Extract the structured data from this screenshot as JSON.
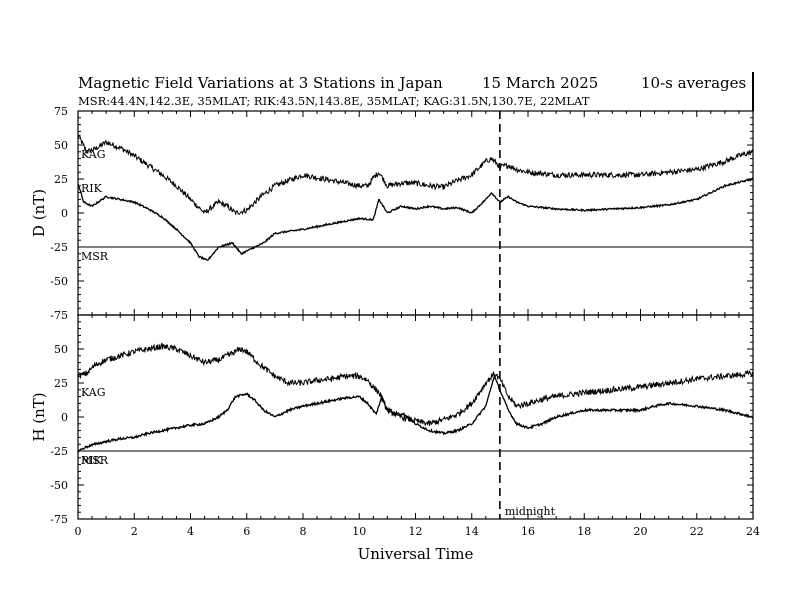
{
  "header": {
    "title": "Magnetic Field Variations at 3 Stations in Japan",
    "date": "15 March   2025",
    "averaging": "10-s averages",
    "stations_line": "MSR:44.4N,142.3E, 35MLAT;  RIK:43.5N,143.8E, 35MLAT;  KAG:31.5N,130.7E, 22MLAT"
  },
  "chart_data": [
    {
      "type": "line",
      "panel": "top",
      "ylabel": "D (nT)",
      "xlabel": "",
      "xlim": [
        0,
        24
      ],
      "ylim": [
        -75,
        75
      ],
      "yticks": [
        -75,
        -50,
        -25,
        0,
        25,
        50,
        75
      ],
      "xticks": [
        0,
        2,
        4,
        6,
        8,
        10,
        12,
        14,
        16,
        18,
        20,
        22,
        24
      ],
      "baseline_offsets": [
        {
          "label": "KAG",
          "offset": 50
        },
        {
          "label": "RIK",
          "offset": 25
        },
        {
          "label": "MSR",
          "offset": -25
        }
      ],
      "series": [
        {
          "name": "KAG",
          "noise": 2.0,
          "x": [
            0,
            0.3,
            0.6,
            1.0,
            1.5,
            2.0,
            2.5,
            3.0,
            3.5,
            4.0,
            4.5,
            5.0,
            5.3,
            5.6,
            6.0,
            6.5,
            7.0,
            7.5,
            8.0,
            8.5,
            9.0,
            9.5,
            10.0,
            10.3,
            10.5,
            10.7,
            11.0,
            11.5,
            12.0,
            12.5,
            13.0,
            13.5,
            14.0,
            14.5,
            14.7,
            15.0,
            15.3,
            15.6,
            16.0,
            16.5,
            17.0,
            18.0,
            19.0,
            20.0,
            21.0,
            22.0,
            23.0,
            23.5,
            24.0
          ],
          "y": [
            58,
            45,
            47,
            52,
            48,
            42,
            35,
            28,
            20,
            10,
            0,
            8,
            5,
            0,
            2,
            12,
            20,
            24,
            28,
            26,
            24,
            22,
            20,
            20,
            26,
            30,
            20,
            22,
            22,
            20,
            19,
            24,
            28,
            38,
            40,
            34,
            35,
            32,
            30,
            29,
            28,
            28,
            28,
            28,
            30,
            32,
            38,
            42,
            45
          ]
        },
        {
          "name": "RIK",
          "noise": 0.6,
          "x": [
            0,
            0.2,
            0.5,
            1.0,
            1.5,
            2.0,
            2.5,
            3.0,
            3.5,
            4.0,
            4.3,
            4.6,
            5.0,
            5.5,
            5.8,
            6.0,
            6.3,
            6.6,
            7.0,
            8.0,
            9.0,
            10.0,
            10.5,
            10.7,
            11.0,
            11.5,
            12.0,
            12.5,
            13.0,
            13.5,
            14.0,
            14.5,
            14.7,
            15.0,
            15.3,
            15.6,
            16.0,
            17.0,
            18.0,
            19.0,
            20.0,
            21.0,
            22.0,
            23.0,
            24.0
          ],
          "y": [
            22,
            8,
            5,
            12,
            10,
            8,
            3,
            -3,
            -12,
            -22,
            -32,
            -35,
            -25,
            -22,
            -30,
            -28,
            -25,
            -22,
            -15,
            -12,
            -8,
            -4,
            -5,
            10,
            0,
            5,
            3,
            5,
            3,
            4,
            0,
            10,
            15,
            8,
            12,
            8,
            5,
            3,
            2,
            3,
            4,
            6,
            10,
            20,
            25
          ]
        },
        {
          "name": "MSR",
          "noise": 0,
          "x": [
            0,
            24
          ],
          "y": [
            -25,
            -25
          ]
        }
      ],
      "annotations": []
    },
    {
      "type": "line",
      "panel": "bottom",
      "ylabel": "H (nT)",
      "xlabel": "Universal Time",
      "xlim": [
        0,
        24
      ],
      "ylim": [
        -75,
        75
      ],
      "yticks": [
        -75,
        -50,
        -25,
        0,
        25,
        50,
        75
      ],
      "xticks": [
        0,
        2,
        4,
        6,
        8,
        10,
        12,
        14,
        16,
        18,
        20,
        22,
        24
      ],
      "baseline_offsets": [
        {
          "label": "KAG",
          "offset": 25
        },
        {
          "label": "RIK",
          "offset": -25
        },
        {
          "label": "MSR",
          "offset": -25
        }
      ],
      "series": [
        {
          "name": "KAG",
          "noise": 2.2,
          "x": [
            0,
            0.3,
            0.6,
            1.0,
            1.5,
            2.0,
            2.5,
            3.0,
            3.5,
            4.0,
            4.5,
            5.0,
            5.5,
            5.8,
            6.0,
            6.5,
            7.0,
            7.5,
            8.0,
            8.5,
            9.0,
            9.5,
            10.0,
            10.3,
            10.5,
            10.7,
            11.0,
            11.5,
            12.0,
            12.5,
            13.0,
            13.5,
            14.0,
            14.5,
            14.8,
            15.0,
            15.3,
            15.6,
            16.0,
            16.5,
            17.0,
            18.0,
            19.0,
            20.0,
            21.0,
            22.0,
            23.0,
            24.0
          ],
          "y": [
            30,
            32,
            38,
            42,
            45,
            48,
            50,
            52,
            50,
            45,
            40,
            42,
            47,
            50,
            48,
            38,
            30,
            25,
            25,
            27,
            28,
            30,
            30,
            27,
            22,
            18,
            5,
            0,
            -3,
            -5,
            -2,
            2,
            10,
            25,
            32,
            28,
            15,
            8,
            10,
            13,
            15,
            18,
            20,
            22,
            25,
            28,
            30,
            32
          ]
        },
        {
          "name": "RIK",
          "noise": 0.8,
          "x": [
            0,
            0.3,
            0.6,
            1.0,
            1.5,
            2.0,
            2.5,
            3.0,
            3.5,
            4.0,
            4.5,
            5.0,
            5.3,
            5.6,
            6.0,
            6.3,
            6.6,
            7.0,
            7.5,
            8.0,
            8.5,
            9.0,
            9.5,
            10.0,
            10.3,
            10.6,
            10.8,
            11.0,
            11.3,
            11.6,
            12.0,
            12.5,
            13.0,
            13.5,
            14.0,
            14.5,
            14.8,
            15.0,
            15.3,
            15.6,
            16.0,
            16.5,
            17.0,
            18.0,
            19.0,
            20.0,
            20.5,
            21.0,
            22.0,
            23.0,
            24.0
          ],
          "y": [
            -25,
            -22,
            -20,
            -18,
            -16,
            -15,
            -12,
            -10,
            -8,
            -6,
            -5,
            0,
            5,
            15,
            17,
            12,
            5,
            0,
            5,
            8,
            10,
            12,
            14,
            15,
            10,
            2,
            15,
            5,
            2,
            2,
            -5,
            -10,
            -12,
            -10,
            -5,
            8,
            30,
            20,
            5,
            -5,
            -8,
            -5,
            0,
            5,
            5,
            5,
            8,
            10,
            8,
            5,
            0
          ]
        },
        {
          "name": "MSR",
          "noise": 0,
          "x": [
            0,
            24
          ],
          "y": [
            -25,
            -25
          ]
        }
      ],
      "annotations": [
        {
          "text": "midnight",
          "x": 15
        }
      ]
    }
  ]
}
